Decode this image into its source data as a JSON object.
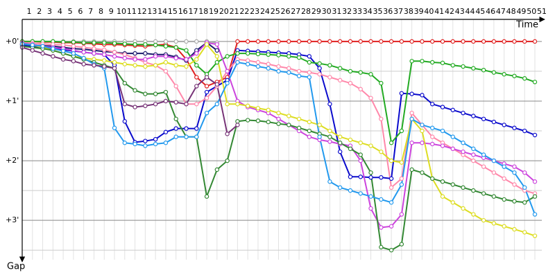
{
  "chart_data": {
    "type": "line",
    "x_label": "Time",
    "y_label": "Gap",
    "x": [
      1,
      2,
      3,
      4,
      5,
      6,
      7,
      8,
      9,
      10,
      11,
      12,
      13,
      14,
      15,
      16,
      17,
      18,
      19,
      20,
      21,
      22,
      23,
      24,
      25,
      26,
      27,
      28,
      29,
      30,
      31,
      32,
      33,
      34,
      35,
      36,
      37,
      38,
      39,
      40,
      41,
      42,
      43,
      44,
      45,
      46,
      47,
      48,
      49,
      50,
      51
    ],
    "xlim": [
      1,
      51
    ],
    "ylim": [
      -0.37,
      3.66
    ],
    "y_inverted": true,
    "yticks": [
      {
        "value": 0,
        "label": "+0'"
      },
      {
        "value": 1,
        "label": "+1'"
      },
      {
        "value": 2,
        "label": "+2'"
      },
      {
        "value": 3,
        "label": "+3'"
      }
    ],
    "minor_yticks": [
      0.5,
      1.5,
      2.5,
      3.5
    ],
    "grid": true,
    "series": [
      {
        "color": "#e02020",
        "values": [
          0,
          0,
          0.01,
          0.01,
          0.02,
          0.02,
          0.03,
          0.04,
          0.05,
          0.05,
          0.06,
          0.07,
          0.08,
          0.06,
          0.05,
          0.1,
          0.3,
          0.6,
          0.75,
          0.68,
          0.6,
          0,
          0,
          0,
          0,
          0,
          0,
          0,
          0,
          0,
          0,
          0,
          0,
          0,
          0,
          0,
          0,
          0,
          0,
          0,
          0,
          0,
          0,
          0,
          0,
          0,
          0,
          0,
          0,
          0,
          0
        ]
      },
      {
        "color": "#aaaaaa",
        "values": [
          0,
          0,
          0,
          0,
          0,
          0,
          0,
          0,
          0,
          0,
          0,
          0,
          0,
          0,
          0,
          0,
          0,
          0,
          0,
          0.02,
          null,
          null,
          null,
          null,
          null,
          null,
          null,
          null,
          null,
          null,
          null,
          null,
          null,
          null,
          null,
          null,
          null,
          null,
          null,
          null,
          null,
          null,
          null,
          null,
          null,
          null,
          null,
          null,
          null,
          null,
          null
        ]
      },
      {
        "color": "#1a1a6e",
        "values": [
          0.05,
          0.06,
          0.07,
          0.08,
          0.1,
          0.12,
          0.13,
          0.15,
          0.17,
          0.18,
          0.2,
          0.2,
          0.2,
          0.22,
          0.22,
          0.26,
          0.32,
          0.15,
          0.02,
          0.15,
          null,
          null,
          null,
          null,
          null,
          null,
          null,
          null,
          null,
          null,
          null,
          null,
          null,
          null,
          null,
          null,
          null,
          null,
          null,
          null,
          null,
          null,
          null,
          null,
          null,
          null,
          null,
          null,
          null,
          null,
          null
        ]
      },
      {
        "color": "#0a0acc",
        "values": [
          0.06,
          0.08,
          0.1,
          0.12,
          0.14,
          0.16,
          0.18,
          0.2,
          0.22,
          0.4,
          1.34,
          1.69,
          1.67,
          1.64,
          1.52,
          1.46,
          1.46,
          1.46,
          0.85,
          0.75,
          0.65,
          0.15,
          0.16,
          0.17,
          0.18,
          0.19,
          0.2,
          0.22,
          0.25,
          0.45,
          1.05,
          1.85,
          2.27,
          2.27,
          2.28,
          2.28,
          2.3,
          0.87,
          0.88,
          0.9,
          1.05,
          1.1,
          1.15,
          1.2,
          1.25,
          1.3,
          1.35,
          1.4,
          1.45,
          1.5,
          1.57
        ]
      },
      {
        "color": "#22aa22",
        "values": [
          0,
          0,
          0,
          0,
          0.01,
          0.01,
          0.02,
          0.02,
          0.02,
          0.03,
          0.04,
          0.05,
          0.05,
          0.06,
          0.08,
          0.1,
          0.15,
          0.4,
          0.55,
          0.35,
          0.25,
          0.2,
          0.2,
          0.21,
          0.22,
          0.23,
          0.25,
          0.27,
          0.35,
          0.37,
          0.4,
          0.45,
          0.5,
          0.52,
          0.55,
          0.7,
          1.7,
          1.5,
          0.33,
          0.33,
          0.35,
          0.36,
          0.4,
          0.42,
          0.45,
          0.48,
          0.52,
          0.55,
          0.58,
          0.62,
          0.68
        ]
      },
      {
        "color": "#ff88aa",
        "values": [
          0.02,
          0.03,
          0.04,
          0.05,
          0.06,
          0.08,
          0.1,
          0.12,
          0.14,
          0.18,
          0.22,
          0.28,
          0.35,
          0.4,
          0.5,
          0.75,
          1.05,
          1.05,
          0.95,
          0.75,
          0.5,
          0.3,
          0.32,
          0.35,
          0.38,
          0.42,
          0.45,
          0.5,
          0.52,
          0.55,
          0.6,
          0.65,
          0.7,
          0.8,
          0.95,
          1.3,
          2.45,
          2.3,
          1.2,
          1.4,
          1.6,
          1.7,
          1.8,
          1.9,
          2.0,
          2.1,
          2.2,
          2.3,
          2.4,
          2.5,
          2.55
        ]
      },
      {
        "color": "#cc44dd",
        "values": [
          0.03,
          0.05,
          0.08,
          0.1,
          0.12,
          0.15,
          0.18,
          0.2,
          0.22,
          0.25,
          0.28,
          0.3,
          0.3,
          0.25,
          0.25,
          0.28,
          0.3,
          0.2,
          0.02,
          0.05,
          0.5,
          1.0,
          1.1,
          1.15,
          1.2,
          1.3,
          1.4,
          1.5,
          1.6,
          1.65,
          1.68,
          1.72,
          1.75,
          2.0,
          2.8,
          3.12,
          3.1,
          2.9,
          1.7,
          1.7,
          1.72,
          1.75,
          1.8,
          1.85,
          1.9,
          1.95,
          2.0,
          2.05,
          2.1,
          2.2,
          2.35
        ]
      },
      {
        "color": "#dddd22",
        "values": [
          0.04,
          0.06,
          0.1,
          0.15,
          0.2,
          0.25,
          0.28,
          0.3,
          0.32,
          0.35,
          0.38,
          0.4,
          0.42,
          0.4,
          0.35,
          0.4,
          0.42,
          0.3,
          0.05,
          0.25,
          1.05,
          1.05,
          1.08,
          1.12,
          1.15,
          1.2,
          1.25,
          1.3,
          1.35,
          1.4,
          1.5,
          1.6,
          1.65,
          1.7,
          1.75,
          1.85,
          2.0,
          2.03,
          1.3,
          1.5,
          2.3,
          2.6,
          2.7,
          2.8,
          2.9,
          3.0,
          3.05,
          3.1,
          3.15,
          3.2,
          3.26
        ]
      },
      {
        "color": "#338833",
        "values": [
          0.08,
          0.1,
          0.12,
          0.15,
          0.2,
          0.25,
          0.3,
          0.35,
          0.4,
          0.45,
          0.7,
          0.82,
          0.88,
          0.88,
          0.85,
          1.3,
          1.6,
          1.6,
          2.6,
          2.15,
          2.0,
          1.34,
          1.32,
          1.33,
          1.35,
          1.38,
          1.4,
          1.45,
          1.5,
          1.55,
          1.6,
          1.7,
          1.8,
          1.9,
          2.2,
          3.45,
          3.5,
          3.4,
          2.15,
          2.2,
          2.3,
          2.35,
          2.4,
          2.45,
          2.5,
          2.55,
          2.6,
          2.65,
          2.68,
          2.7,
          2.6
        ]
      },
      {
        "color": "#2299ee",
        "values": [
          0.04,
          0.06,
          0.08,
          0.12,
          0.16,
          0.2,
          0.28,
          0.38,
          0.45,
          1.45,
          1.7,
          1.72,
          1.75,
          1.72,
          1.7,
          1.6,
          1.6,
          1.6,
          1.2,
          1.05,
          0.7,
          0.35,
          0.38,
          0.42,
          0.45,
          0.5,
          0.52,
          0.58,
          0.6,
          1.6,
          2.35,
          2.45,
          2.5,
          2.55,
          2.6,
          2.65,
          2.7,
          2.4,
          1.3,
          1.4,
          1.45,
          1.5,
          1.6,
          1.7,
          1.8,
          1.9,
          2.0,
          2.1,
          2.2,
          2.45,
          2.9
        ]
      },
      {
        "color": "#773377",
        "values": [
          0.1,
          0.15,
          0.2,
          0.25,
          0.3,
          0.33,
          0.38,
          0.4,
          0.42,
          0.45,
          1.05,
          1.1,
          1.08,
          1.05,
          1.0,
          1.02,
          1.05,
          0.75,
          0.6,
          0.72,
          1.55,
          1.4,
          null,
          null,
          null,
          null,
          null,
          null,
          null,
          null,
          null,
          null,
          null,
          null,
          null,
          null,
          null,
          null,
          null,
          null,
          null,
          null,
          null,
          null,
          null,
          null,
          null,
          null,
          null,
          null,
          null
        ]
      }
    ]
  }
}
